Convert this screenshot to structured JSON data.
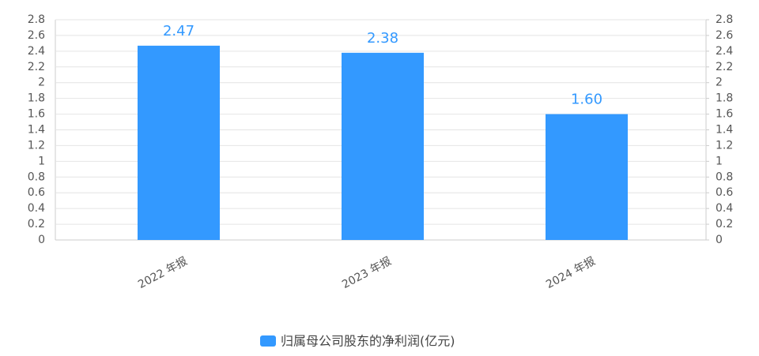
{
  "chart_data": {
    "type": "bar",
    "categories": [
      "2022 年报",
      "2023 年报",
      "2024 年报"
    ],
    "series": [
      {
        "name": "归属母公司股东的净利润(亿元)",
        "color": "#3399ff",
        "values": [
          2.47,
          2.38,
          1.6
        ],
        "value_labels": [
          "2.47",
          "2.38",
          "1.60"
        ]
      }
    ],
    "ylim": [
      0,
      2.8
    ],
    "yticks": [
      0,
      0.2,
      0.4,
      0.6,
      0.8,
      1,
      1.2,
      1.4,
      1.6,
      1.8,
      2,
      2.2,
      2.4,
      2.6,
      2.8
    ],
    "y2lim": [
      0,
      2.8
    ],
    "y2ticks": [
      0,
      0.2,
      0.4,
      0.6,
      0.8,
      1,
      1.2,
      1.4,
      1.6,
      1.8,
      2,
      2.2,
      2.4,
      2.6,
      2.8
    ],
    "grid": true
  }
}
